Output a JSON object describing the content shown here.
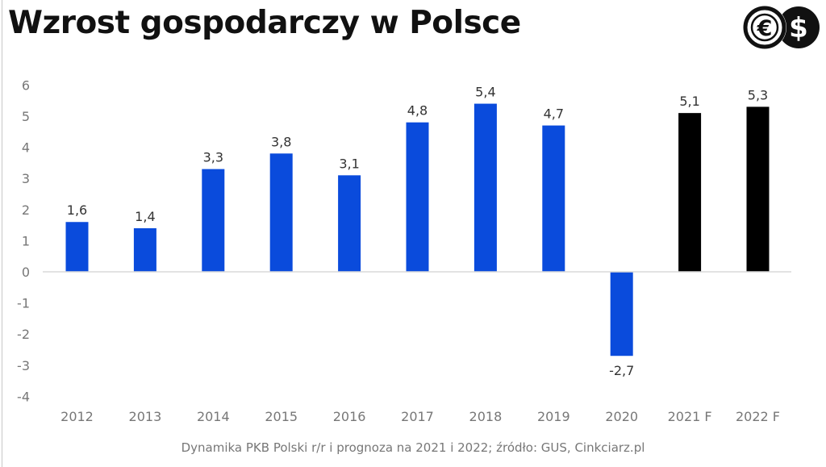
{
  "title": "Wzrost gospodarczy w Polsce",
  "caption": "Dynamika PKB Polski r/r i prognoza na 2021 i 2022; źródło: GUS, Cinkciarz.pl",
  "logo": {
    "icons": [
      "euro-icon",
      "dollar-icon"
    ],
    "text": "€$"
  },
  "colors": {
    "actual": "#0a4bdc",
    "forecast": "#000000",
    "axis": "#d9d9d9",
    "tick": "#777777",
    "label": "#333333"
  },
  "chart_data": {
    "type": "bar",
    "title": "Wzrost gospodarczy w Polsce",
    "xlabel": "",
    "ylabel": "",
    "categories": [
      "2012",
      "2013",
      "2014",
      "2015",
      "2016",
      "2017",
      "2018",
      "2019",
      "2020",
      "2021 F",
      "2022 F"
    ],
    "values": [
      1.6,
      1.4,
      3.3,
      3.8,
      3.1,
      4.8,
      5.4,
      4.7,
      -2.7,
      5.1,
      5.3
    ],
    "value_labels": [
      "1,6",
      "1,4",
      "3,3",
      "3,8",
      "3,1",
      "4,8",
      "5,4",
      "4,7",
      "-2,7",
      "5,1",
      "5,3"
    ],
    "forecast": [
      false,
      false,
      false,
      false,
      false,
      false,
      false,
      false,
      false,
      true,
      true
    ],
    "ylim": [
      -4,
      6
    ],
    "yticks": [
      6,
      5,
      4,
      3,
      2,
      1,
      0,
      -1,
      -2,
      -3,
      -4
    ],
    "grid": false,
    "legend": "none"
  }
}
